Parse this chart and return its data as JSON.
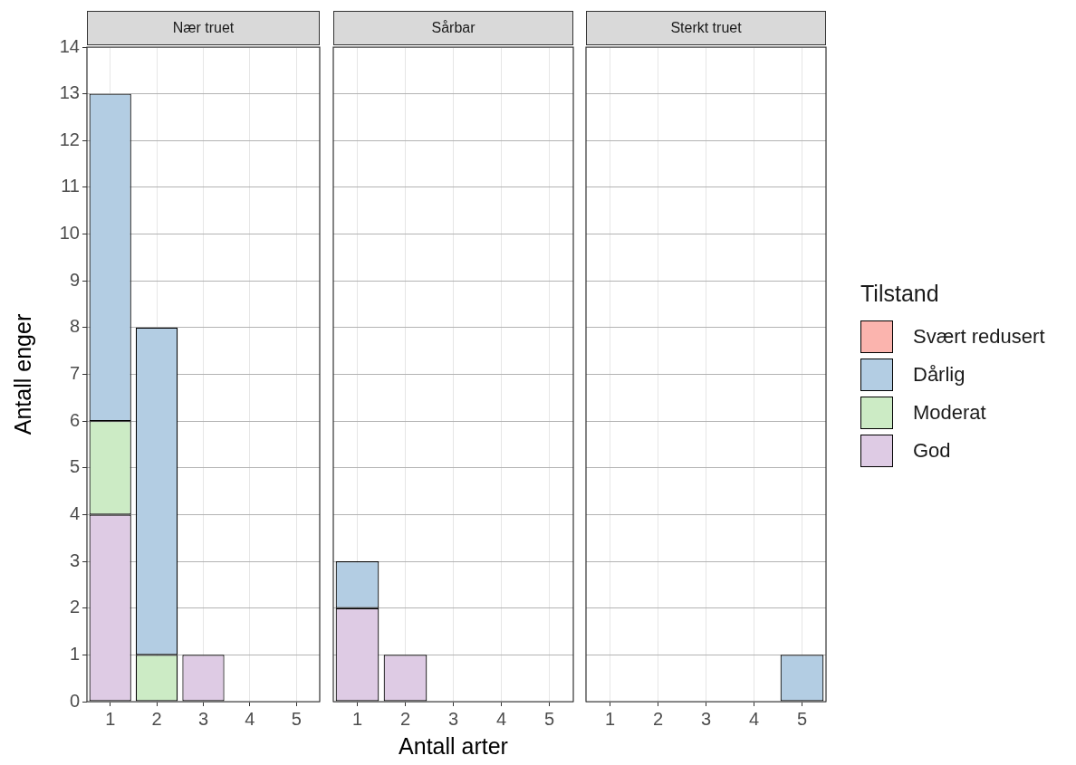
{
  "chart_data": [
    {
      "type": "bar",
      "title": "Nær truet",
      "ylabel": "Antall enger",
      "categories": [
        "1",
        "2",
        "3",
        "4",
        "5"
      ],
      "stacked": true,
      "ylim": [
        0,
        14
      ],
      "yticks": [
        0,
        1,
        2,
        3,
        4,
        5,
        6,
        7,
        8,
        9,
        10,
        11,
        12,
        13,
        14
      ],
      "grid": true,
      "series": [
        {
          "color": "#decbe4",
          "values": [
            4,
            null,
            1,
            null,
            null
          ]
        },
        {
          "color": "#ccebc5",
          "values": [
            2,
            1,
            null,
            null,
            null
          ]
        },
        {
          "color": "#b3cde3",
          "values": [
            7,
            7,
            null,
            null,
            null
          ]
        },
        {
          "color": "#fbb4ae",
          "values": [
            null,
            null,
            null,
            null,
            null
          ]
        }
      ]
    },
    {
      "type": "bar",
      "title": "Sårbar",
      "xlabel": "Antall arter",
      "categories": [
        "1",
        "2",
        "3",
        "4",
        "5"
      ],
      "stacked": true,
      "ylim": [
        0,
        14
      ],
      "yticks": [
        0,
        1,
        2,
        3,
        4,
        5,
        6,
        7,
        8,
        9,
        10,
        11,
        12,
        13,
        14
      ],
      "grid": true,
      "tick_labels": "x",
      "series": [
        {
          "color": "#decbe4",
          "values": [
            2,
            1,
            null,
            null,
            null
          ]
        },
        {
          "color": "#ccebc5",
          "values": [
            null,
            null,
            null,
            null,
            null
          ]
        },
        {
          "color": "#b3cde3",
          "values": [
            1,
            null,
            null,
            null,
            null
          ]
        },
        {
          "color": "#fbb4ae",
          "values": [
            null,
            null,
            null,
            null,
            null
          ]
        }
      ]
    },
    {
      "type": "bar",
      "title": "Sterkt truet",
      "categories": [
        "1",
        "2",
        "3",
        "4",
        "5"
      ],
      "stacked": true,
      "ylim": [
        0,
        14
      ],
      "yticks": [
        0,
        1,
        2,
        3,
        4,
        5,
        6,
        7,
        8,
        9,
        10,
        11,
        12,
        13,
        14
      ],
      "grid": true,
      "tick_labels": "x",
      "legend": "right",
      "legend_title": "Tilstand",
      "series": [
        {
          "name": "God",
          "color": "#decbe4",
          "values": [
            null,
            null,
            null,
            null,
            null
          ]
        },
        {
          "name": "Moderat",
          "color": "#ccebc5",
          "values": [
            null,
            null,
            null,
            null,
            null
          ]
        },
        {
          "name": "Dårlig",
          "color": "#b3cde3",
          "values": [
            null,
            null,
            null,
            null,
            1
          ]
        },
        {
          "name": "Svært redusert",
          "color": "#fbb4ae",
          "values": [
            null,
            null,
            null,
            null,
            null
          ]
        }
      ]
    }
  ]
}
